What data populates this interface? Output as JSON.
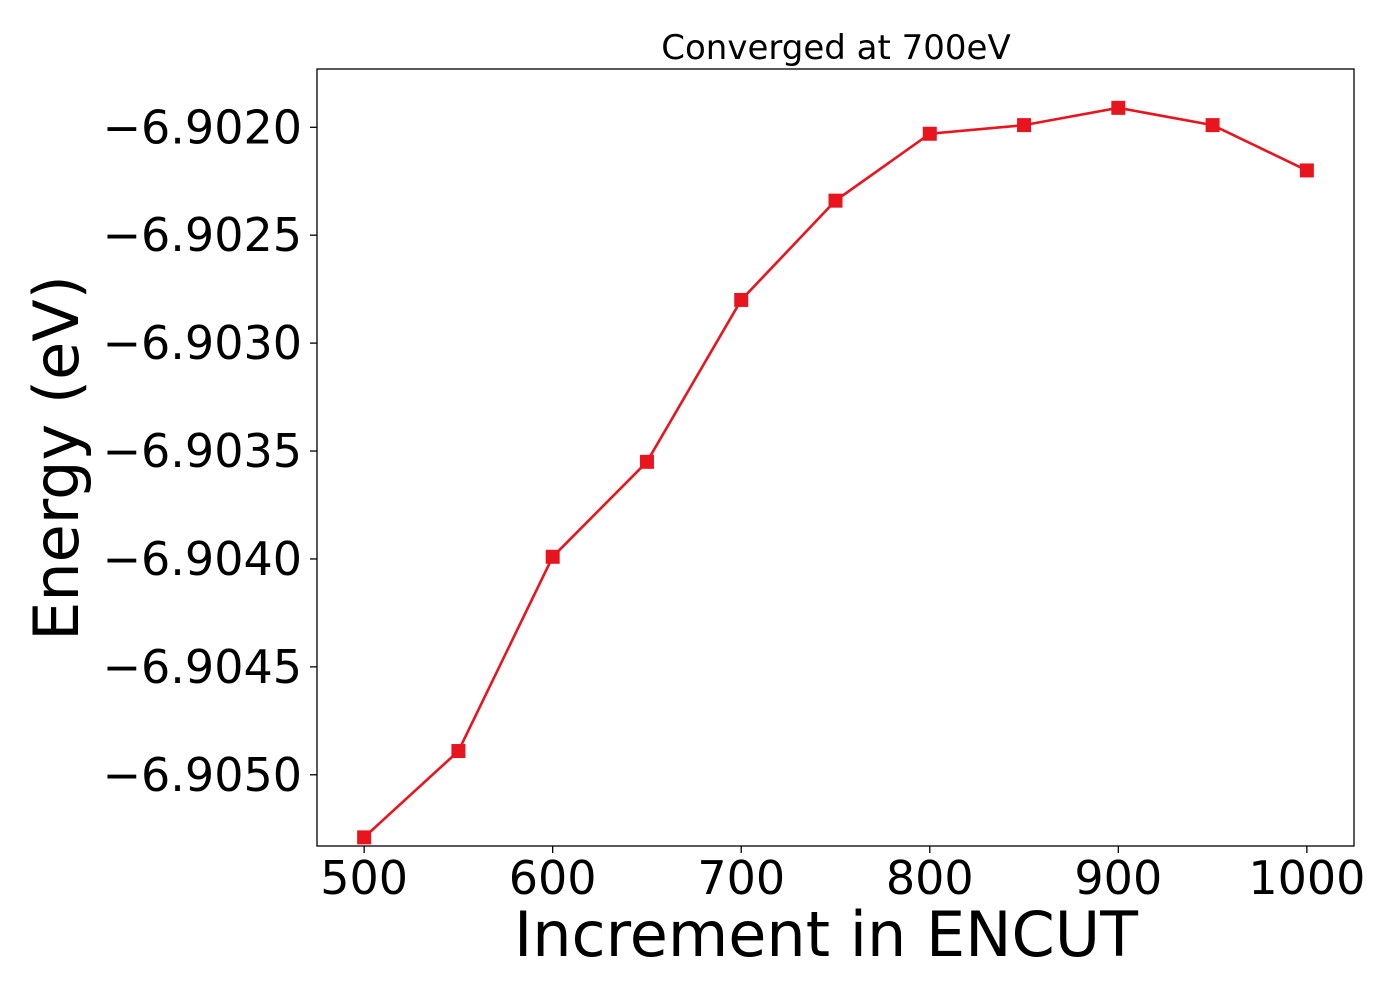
{
  "chart_data": {
    "type": "line",
    "title": "Converged at 700eV",
    "xlabel": "Increment in ENCUT",
    "ylabel": "Energy (eV)",
    "xlim": [
      475,
      1025
    ],
    "ylim": [
      -6.90533,
      -6.90173
    ],
    "x_ticks": [
      500,
      600,
      700,
      800,
      900,
      1000
    ],
    "y_ticks": [
      -6.905,
      -6.9045,
      -6.904,
      -6.9035,
      -6.903,
      -6.9025,
      -6.902
    ],
    "x_tick_labels": [
      "500",
      "600",
      "700",
      "800",
      "900",
      "1000"
    ],
    "y_tick_labels": [
      "−6.9050",
      "−6.9045",
      "−6.9040",
      "−6.9035",
      "−6.9030",
      "−6.9025",
      "−6.9020"
    ],
    "grid": false,
    "marker": "square",
    "color": "#e8141e",
    "series": [
      {
        "x": [
          500,
          550,
          600,
          650,
          700,
          750,
          800,
          850,
          900,
          950,
          1000
        ],
        "y": [
          -6.90529,
          -6.90489,
          -6.90399,
          -6.90355,
          -6.9028,
          -6.90234,
          -6.90203,
          -6.90199,
          -6.90191,
          -6.90199,
          -6.9022
        ]
      }
    ]
  }
}
